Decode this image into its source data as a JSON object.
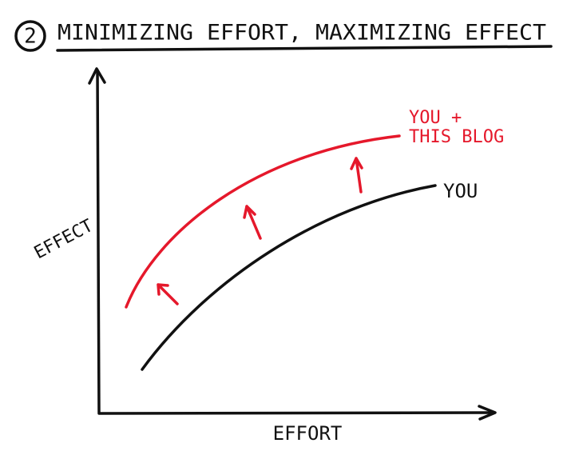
{
  "header": {
    "number": "2",
    "title": "MINIMIZING EFFORT, MAXIMIZING EFFECT"
  },
  "axes": {
    "x_label": "EFFORT",
    "y_label": "EFFECT"
  },
  "curves": [
    {
      "label_lines": [
        "YOU +",
        "THIS BLOG"
      ]
    },
    {
      "label_lines": [
        "YOU"
      ]
    }
  ]
}
